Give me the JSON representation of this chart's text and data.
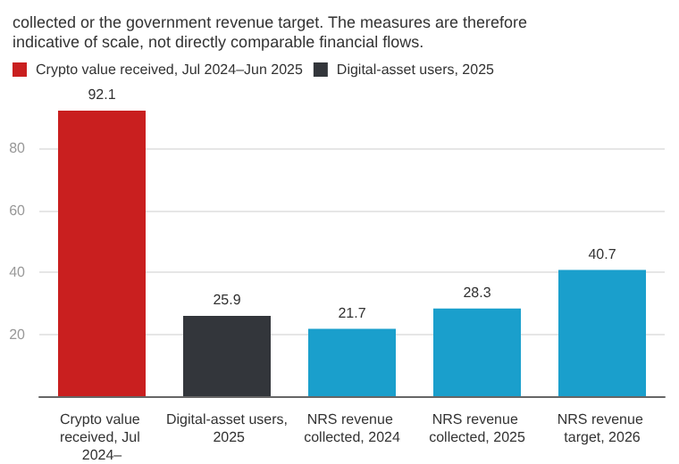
{
  "chart_data": {
    "type": "bar",
    "subtitle": "collected or the government revenue target. The measures are therefore indicative of scale, not directly comparable financial flows.",
    "categories": [
      "Crypto value received, Jul 2024–",
      "Digital-asset users, 2025",
      "NRS revenue collected, 2024",
      "NRS revenue collected, 2025",
      "NRS revenue target, 2026"
    ],
    "series": [
      {
        "name": "Crypto value received, Jul 2024–Jun 2025",
        "color": "#c91f1f",
        "values": [
          92.1,
          null,
          null,
          null,
          null
        ]
      },
      {
        "name": "Digital-asset users, 2025",
        "color": "#33363b",
        "values": [
          null,
          25.9,
          null,
          null,
          null
        ]
      },
      {
        "color": "#1a9fcc",
        "values": [
          null,
          null,
          21.7,
          28.3,
          40.7
        ]
      }
    ],
    "ylim": [
      0,
      92.1
    ],
    "yticks": [
      {
        "value": 0,
        "label": null
      },
      20,
      40,
      60,
      80
    ],
    "grid": "y",
    "legend": "top left",
    "data_labels": true
  }
}
